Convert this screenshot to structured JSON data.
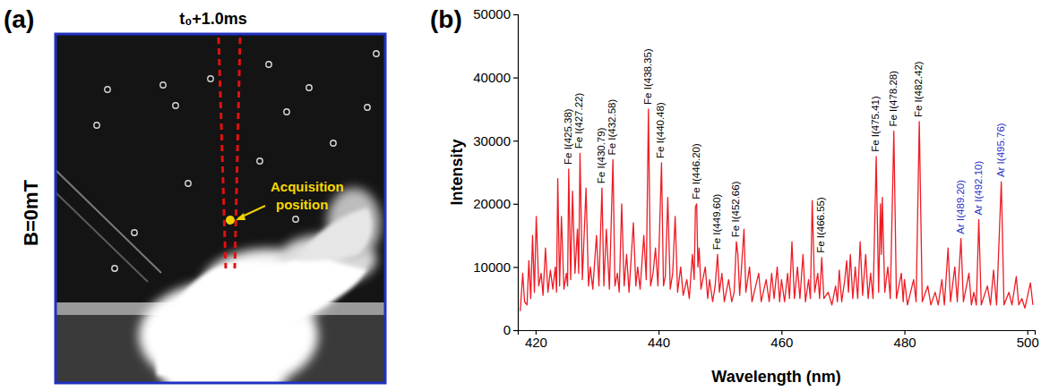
{
  "panel_a": {
    "label": "(a)",
    "title": "t₀+1.0ms",
    "row_label": "B=0mT",
    "annotation": "Acquisition position"
  },
  "panel_b": {
    "label": "(b)"
  },
  "chart_data": {
    "type": "line",
    "x_label": "Wavelength (nm)",
    "y_label": "Intensity",
    "color": "#ee1c25",
    "xlim": [
      417.1,
      501.2
    ],
    "xticks": [
      420,
      440,
      460,
      480,
      500
    ],
    "ylim": [
      0,
      50000
    ],
    "yticks": [
      0,
      10000,
      20000,
      30000,
      40000,
      50000
    ],
    "x": [
      417.5,
      417.9,
      418.2,
      418.6,
      418.9,
      419.2,
      419.5,
      419.8,
      420.1,
      420.5,
      420.9,
      421.2,
      421.6,
      422.0,
      422.4,
      422.8,
      423.2,
      423.4,
      423.6,
      423.9,
      424.2,
      424.6,
      425.0,
      425.2,
      425.38,
      425.7,
      426.0,
      426.4,
      426.8,
      427.0,
      427.22,
      427.6,
      428.2,
      428.6,
      428.9,
      429.3,
      429.9,
      430.3,
      430.79,
      431.1,
      431.5,
      432.0,
      432.58,
      432.9,
      433.3,
      433.6,
      434.0,
      434.4,
      434.8,
      435.2,
      435.9,
      436.3,
      436.6,
      437.0,
      437.6,
      438.0,
      438.35,
      438.7,
      439.1,
      439.5,
      439.9,
      440.48,
      440.8,
      441.1,
      441.5,
      441.9,
      442.3,
      442.7,
      443.1,
      443.6,
      444.0,
      444.6,
      445.0,
      445.5,
      445.8,
      446.0,
      446.2,
      446.4,
      446.6,
      446.9,
      447.6,
      448.0,
      448.3,
      448.8,
      449.2,
      449.6,
      449.9,
      450.3,
      450.7,
      451.4,
      451.9,
      452.3,
      452.66,
      452.9,
      453.2,
      453.9,
      454.2,
      454.8,
      455.2,
      455.8,
      456.3,
      456.7,
      457.5,
      458.0,
      458.4,
      458.8,
      459.3,
      459.7,
      460.0,
      460.5,
      461.0,
      461.3,
      461.7,
      462.1,
      462.6,
      463.0,
      463.5,
      463.9,
      464.4,
      464.7,
      465.0,
      465.4,
      465.9,
      466.2,
      466.55,
      466.9,
      467.6,
      468.2,
      468.8,
      469.1,
      469.4,
      469.8,
      470.3,
      470.6,
      470.9,
      471.2,
      471.6,
      472.0,
      472.4,
      472.8,
      473.2,
      473.7,
      474.1,
      474.5,
      474.9,
      475.41,
      475.8,
      476.1,
      476.25,
      476.4,
      476.8,
      477.3,
      477.7,
      478.28,
      478.7,
      479.5,
      479.8,
      480.0,
      480.5,
      481.0,
      481.5,
      481.9,
      482.42,
      482.9,
      483.8,
      484.3,
      485.0,
      485.5,
      486.1,
      486.5,
      487.1,
      487.5,
      488.2,
      488.6,
      489.2,
      489.6,
      490.5,
      490.9,
      491.3,
      491.7,
      492.1,
      492.5,
      493.5,
      494.0,
      494.5,
      495.0,
      495.76,
      496.2,
      497.0,
      497.5,
      498.2,
      498.6,
      499.1,
      499.6,
      500.5,
      500.9
    ],
    "values": [
      3000,
      9000,
      4500,
      4000,
      11000,
      5000,
      15000,
      6000,
      18000,
      7000,
      9000,
      5500,
      13000,
      6000,
      9500,
      6500,
      10000,
      6000,
      24000,
      7000,
      18000,
      6500,
      9000,
      7000,
      25500,
      8000,
      22000,
      9000,
      16000,
      9000,
      28000,
      8000,
      22500,
      7000,
      10000,
      6500,
      15000,
      7000,
      22500,
      7000,
      16000,
      6500,
      27000,
      7000,
      9000,
      6000,
      20000,
      7000,
      12000,
      6000,
      17000,
      7000,
      10000,
      6500,
      15000,
      8000,
      35000,
      7000,
      9000,
      13000,
      7000,
      26500,
      7000,
      8500,
      21000,
      6500,
      9000,
      18000,
      6000,
      10000,
      5500,
      8000,
      5000,
      12000,
      8000,
      19500,
      20000,
      10000,
      13000,
      6500,
      10000,
      5000,
      8000,
      4500,
      7000,
      12000,
      6000,
      9000,
      4500,
      8000,
      4500,
      6000,
      14000,
      12000,
      5500,
      16000,
      6000,
      10000,
      4500,
      7000,
      9000,
      4500,
      8000,
      4500,
      9000,
      5000,
      10000,
      4500,
      8000,
      4500,
      9000,
      5000,
      14000,
      5000,
      10000,
      5000,
      12000,
      4500,
      8000,
      5000,
      20500,
      6000,
      9000,
      5000,
      11500,
      5000,
      6000,
      4000,
      7000,
      4500,
      9500,
      4500,
      8000,
      11000,
      6000,
      12000,
      5000,
      10000,
      5000,
      14000,
      5500,
      12000,
      5000,
      9000,
      5000,
      27500,
      6000,
      20000,
      12000,
      21000,
      6000,
      10000,
      5000,
      31500,
      5000,
      9000,
      4500,
      8000,
      4000,
      6000,
      8000,
      4500,
      33000,
      4500,
      7000,
      4000,
      6000,
      4000,
      8000,
      4000,
      13000,
      4500,
      10000,
      4500,
      14500,
      4500,
      9000,
      4000,
      6000,
      4000,
      17500,
      4000,
      7000,
      4000,
      9500,
      4000,
      23500,
      4000,
      6000,
      4000,
      8500,
      4000,
      5000,
      3500,
      7500,
      4000
    ],
    "annotations": [
      {
        "text": "Fe I(425.38)",
        "x": 425.38,
        "y": 25500,
        "color": "#000000"
      },
      {
        "text": "Fe I(427.22)",
        "x": 427.22,
        "y": 28000,
        "color": "#000000"
      },
      {
        "text": "Fe I(430.79)",
        "x": 430.79,
        "y": 22500,
        "color": "#000000"
      },
      {
        "text": "Fe I(432.58)",
        "x": 432.58,
        "y": 27000,
        "color": "#000000"
      },
      {
        "text": "Fe I(438.35)",
        "x": 438.35,
        "y": 35000,
        "color": "#000000"
      },
      {
        "text": "Fe I(440.48)",
        "x": 440.48,
        "y": 26500,
        "color": "#000000"
      },
      {
        "text": "Fe I(446.20)",
        "x": 446.2,
        "y": 20000,
        "color": "#000000"
      },
      {
        "text": "Fe I(449.60)",
        "x": 449.6,
        "y": 12000,
        "color": "#000000"
      },
      {
        "text": "Fe I(452.66)",
        "x": 452.66,
        "y": 14000,
        "color": "#000000"
      },
      {
        "text": "Fe I(466.55)",
        "x": 466.55,
        "y": 11500,
        "color": "#000000"
      },
      {
        "text": "Fe I(475.41)",
        "x": 475.41,
        "y": 27500,
        "color": "#000000"
      },
      {
        "text": "Fe I(478.28)",
        "x": 478.28,
        "y": 31500,
        "color": "#000000"
      },
      {
        "text": "Fe I(482.42)",
        "x": 482.42,
        "y": 33000,
        "color": "#000000"
      },
      {
        "text": "Ar I(489.20)",
        "x": 489.2,
        "y": 14500,
        "color": "#3030c8"
      },
      {
        "text": "Ar I(492.10)",
        "x": 492.1,
        "y": 17500,
        "color": "#3030c8"
      },
      {
        "text": "Ar I(495.76)",
        "x": 495.76,
        "y": 23500,
        "color": "#3030c8"
      }
    ]
  }
}
